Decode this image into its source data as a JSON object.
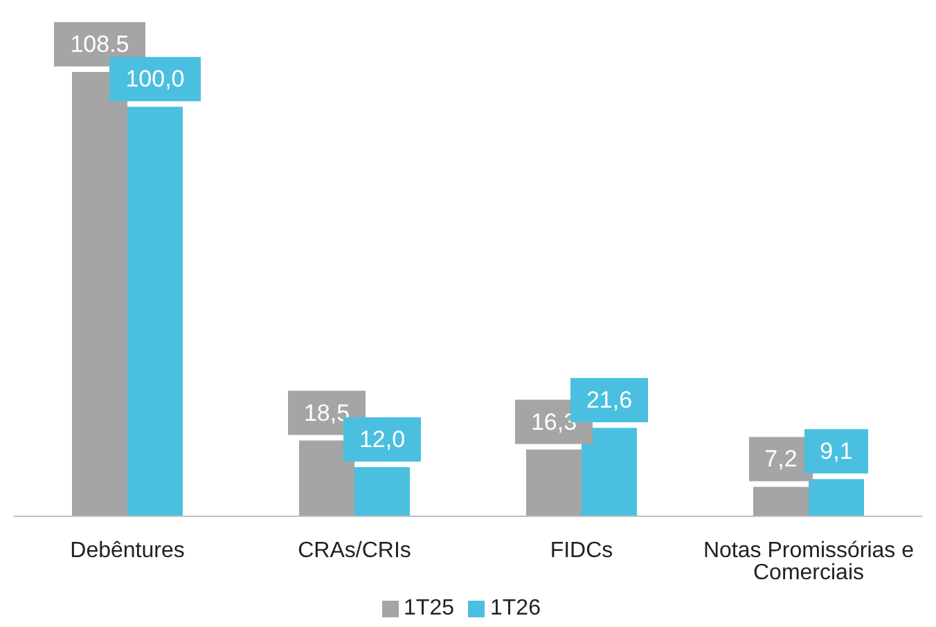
{
  "chart_data": {
    "type": "bar",
    "categories": [
      "Debêntures",
      "CRAs/CRIs",
      "FIDCs",
      "Notas Promissórias e Comerciais"
    ],
    "series": [
      {
        "name": "1T25",
        "color": "#a5a5a5",
        "values": [
          108.5,
          18.5,
          16.3,
          7.2
        ],
        "value_labels": [
          "108.5",
          "18,5",
          "16,3",
          "7,2"
        ]
      },
      {
        "name": "1T26",
        "color": "#4bbfdf",
        "values": [
          100.0,
          12.0,
          21.6,
          9.1
        ],
        "value_labels": [
          "100,0",
          "12,0",
          "21,6",
          "9,1"
        ]
      }
    ],
    "legend": "bottom"
  }
}
